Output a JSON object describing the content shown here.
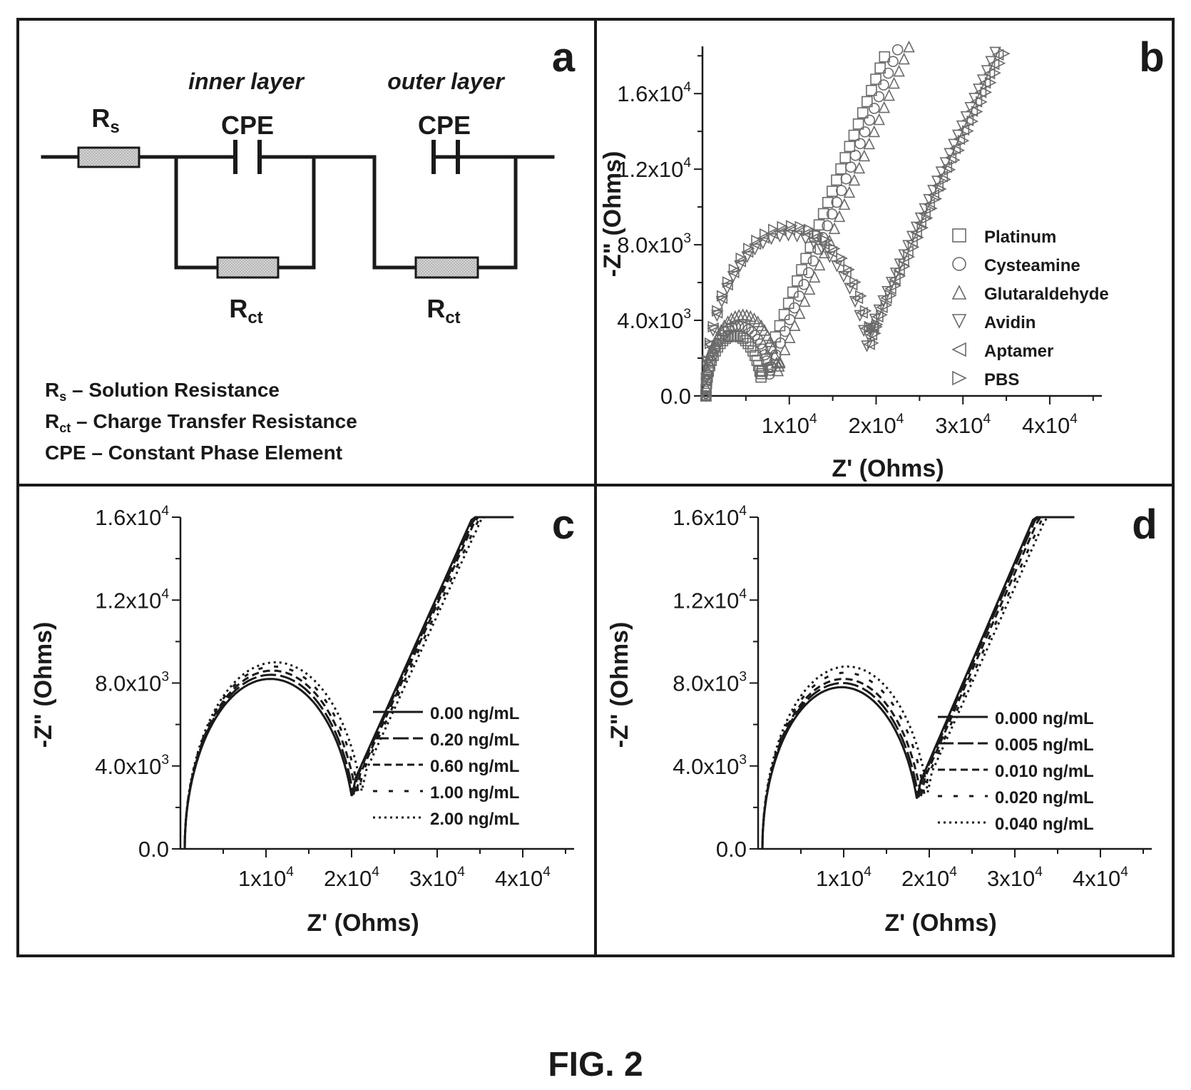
{
  "figure_caption": "FIG. 2",
  "panel_a": {
    "label": "a",
    "inner_layer": "inner layer",
    "outer_layer": "outer layer",
    "cpe": "CPE",
    "rs_base": "R",
    "rs_sub": "s",
    "rct_base": "R",
    "rct_sub": "ct",
    "definitions": [
      {
        "base": "R",
        "sub": "s",
        "text": " – Solution Resistance"
      },
      {
        "base": "R",
        "sub": "ct",
        "text": " – Charge Transfer Resistance"
      },
      {
        "base": "CPE",
        "sub": "",
        "text": " – Constant Phase Element"
      }
    ]
  },
  "chart_data": [
    {
      "panel": "b",
      "type": "scatter",
      "xlabel": "Z' (Ohms)",
      "ylabel": "-Z\" (Ohms)",
      "xlim": [
        0,
        46000
      ],
      "ylim": [
        0,
        18500
      ],
      "xticks": [
        {
          "v": 10000,
          "mant": "1x10",
          "exp": "4"
        },
        {
          "v": 20000,
          "mant": "2x10",
          "exp": "4"
        },
        {
          "v": 30000,
          "mant": "3x10",
          "exp": "4"
        },
        {
          "v": 40000,
          "mant": "4x10",
          "exp": "4"
        }
      ],
      "yticks": [
        {
          "v": 0,
          "mant": "0.0",
          "exp": ""
        },
        {
          "v": 4000,
          "mant": "4.0x10",
          "exp": "3"
        },
        {
          "v": 8000,
          "mant": "8.0x10",
          "exp": "3"
        },
        {
          "v": 12000,
          "mant": "1.2x10",
          "exp": "4"
        },
        {
          "v": 16000,
          "mant": "1.6x10",
          "exp": "4"
        }
      ],
      "legend": "right",
      "series": [
        {
          "name": "Platinum",
          "marker": "square",
          "r_s": 400,
          "r_ct": 6500,
          "peak": 3200,
          "tail_slope": 1.18,
          "x_end": 27000
        },
        {
          "name": "Cysteamine",
          "marker": "circle",
          "r_s": 400,
          "r_ct": 7500,
          "peak": 3700,
          "tail_slope": 1.15,
          "x_end": 29500
        },
        {
          "name": "Glutaraldehyde",
          "marker": "triangle-up",
          "r_s": 400,
          "r_ct": 8500,
          "peak": 4300,
          "tail_slope": 1.12,
          "x_end": 31800
        },
        {
          "name": "Avidin",
          "marker": "triangle-down",
          "r_s": 400,
          "r_ct": 19000,
          "peak": 8500,
          "tail_slope": 1.02,
          "x_end": 38500
        },
        {
          "name": "Aptamer",
          "marker": "triangle-left",
          "r_s": 400,
          "r_ct": 19300,
          "peak": 8800,
          "tail_slope": 1.0,
          "x_end": 39500
        },
        {
          "name": "PBS",
          "marker": "triangle-right",
          "r_s": 400,
          "r_ct": 19700,
          "peak": 9000,
          "tail_slope": 0.98,
          "x_end": 41000
        }
      ]
    },
    {
      "panel": "c",
      "type": "line",
      "xlabel": "Z' (Ohms)",
      "ylabel": "-Z\" (Ohms)",
      "xlim": [
        0,
        46000
      ],
      "ylim": [
        0,
        16000
      ],
      "xticks": [
        {
          "v": 10000,
          "mant": "1x10",
          "exp": "4"
        },
        {
          "v": 20000,
          "mant": "2x10",
          "exp": "4"
        },
        {
          "v": 30000,
          "mant": "3x10",
          "exp": "4"
        },
        {
          "v": 40000,
          "mant": "4x10",
          "exp": "4"
        }
      ],
      "yticks": [
        {
          "v": 0,
          "mant": "0.0",
          "exp": ""
        },
        {
          "v": 4000,
          "mant": "4.0x10",
          "exp": "3"
        },
        {
          "v": 8000,
          "mant": "8.0x10",
          "exp": "3"
        },
        {
          "v": 12000,
          "mant": "1.2x10",
          "exp": "4"
        },
        {
          "v": 16000,
          "mant": "1.6x10",
          "exp": "4"
        }
      ],
      "legend": "right",
      "series": [
        {
          "name": "0.00 ng/mL",
          "dash": "solid",
          "r_s": 500,
          "r_ct": 20000,
          "peak": 8200,
          "tail_slope": 0.92,
          "x_end": 38500
        },
        {
          "name": "0.20 ng/mL",
          "dash": "long",
          "r_s": 500,
          "r_ct": 20200,
          "peak": 8400,
          "tail_slope": 0.91,
          "x_end": 38600
        },
        {
          "name": "0.60 ng/mL",
          "dash": "short",
          "r_s": 500,
          "r_ct": 20500,
          "peak": 8600,
          "tail_slope": 0.91,
          "x_end": 38800
        },
        {
          "name": "1.00 ng/mL",
          "dash": "dash-gap",
          "r_s": 500,
          "r_ct": 20800,
          "peak": 8800,
          "tail_slope": 0.9,
          "x_end": 39000
        },
        {
          "name": "2.00 ng/mL",
          "dash": "dot",
          "r_s": 500,
          "r_ct": 21200,
          "peak": 9000,
          "tail_slope": 0.9,
          "x_end": 39200
        }
      ]
    },
    {
      "panel": "d",
      "type": "line",
      "xlabel": "Z' (Ohms)",
      "ylabel": "-Z\" (Ohms)",
      "xlim": [
        0,
        46000
      ],
      "ylim": [
        0,
        16000
      ],
      "xticks": [
        {
          "v": 10000,
          "mant": "1x10",
          "exp": "4"
        },
        {
          "v": 20000,
          "mant": "2x10",
          "exp": "4"
        },
        {
          "v": 30000,
          "mant": "3x10",
          "exp": "4"
        },
        {
          "v": 40000,
          "mant": "4x10",
          "exp": "4"
        }
      ],
      "yticks": [
        {
          "v": 0,
          "mant": "0.0",
          "exp": ""
        },
        {
          "v": 4000,
          "mant": "4.0x10",
          "exp": "3"
        },
        {
          "v": 8000,
          "mant": "8.0x10",
          "exp": "3"
        },
        {
          "v": 12000,
          "mant": "1.2x10",
          "exp": "4"
        },
        {
          "v": 16000,
          "mant": "1.6x10",
          "exp": "4"
        }
      ],
      "legend": "right",
      "series": [
        {
          "name": "0.000 ng/mL",
          "dash": "solid",
          "r_s": 500,
          "r_ct": 18500,
          "peak": 7800,
          "tail_slope": 0.96,
          "x_end": 36500
        },
        {
          "name": "0.005 ng/mL",
          "dash": "long",
          "r_s": 500,
          "r_ct": 18700,
          "peak": 8000,
          "tail_slope": 0.95,
          "x_end": 36700
        },
        {
          "name": "0.010 ng/mL",
          "dash": "short",
          "r_s": 500,
          "r_ct": 19000,
          "peak": 8200,
          "tail_slope": 0.94,
          "x_end": 36900
        },
        {
          "name": "0.020 ng/mL",
          "dash": "dash-gap",
          "r_s": 500,
          "r_ct": 19400,
          "peak": 8500,
          "tail_slope": 0.93,
          "x_end": 37100
        },
        {
          "name": "0.040 ng/mL",
          "dash": "dot",
          "r_s": 500,
          "r_ct": 19800,
          "peak": 8800,
          "tail_slope": 0.92,
          "x_end": 37300
        }
      ]
    }
  ]
}
